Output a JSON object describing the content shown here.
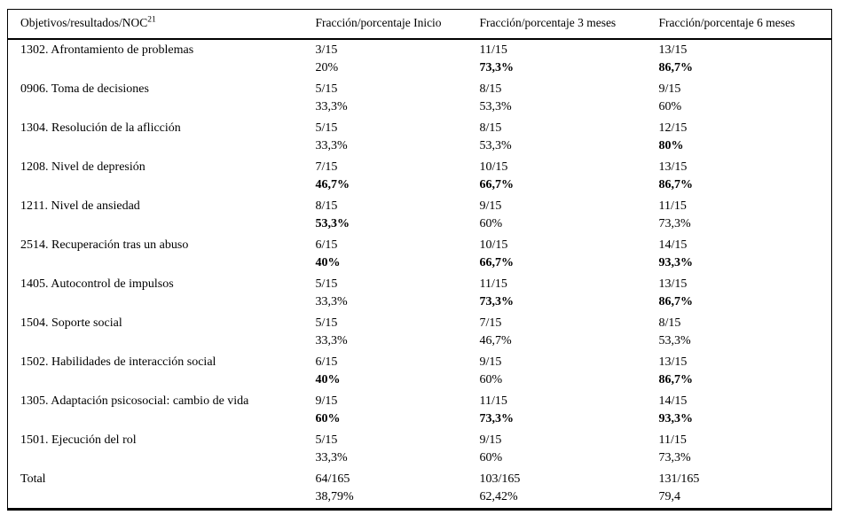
{
  "colors": {
    "background": "#ffffff",
    "text": "#000000",
    "border": "#000000"
  },
  "table": {
    "header": {
      "objectives_label": "Objetivos/resultados/NOC",
      "objectives_superscript": "21",
      "col_inicio": "Fracción/porcentaje Inicio",
      "col_3_meses": "Fracción/porcentaje 3 meses",
      "col_6_meses": "Fracción/porcentaje 6 meses"
    },
    "rows": [
      {
        "label": "1302. Afrontamiento de problemas",
        "inicio": {
          "fraction": "3/15",
          "percent": "20%",
          "bold": false
        },
        "m3": {
          "fraction": "11/15",
          "percent": "73,3%",
          "bold": true
        },
        "m6": {
          "fraction": "13/15",
          "percent": "86,7%",
          "bold": true
        }
      },
      {
        "label": "0906. Toma de decisiones",
        "inicio": {
          "fraction": "5/15",
          "percent": "33,3%",
          "bold": false
        },
        "m3": {
          "fraction": "8/15",
          "percent": "53,3%",
          "bold": false
        },
        "m6": {
          "fraction": "9/15",
          "percent": "60%",
          "bold": false
        }
      },
      {
        "label": "1304. Resolución de la aflicción",
        "inicio": {
          "fraction": "5/15",
          "percent": "33,3%",
          "bold": false
        },
        "m3": {
          "fraction": "8/15",
          "percent": "53,3%",
          "bold": false
        },
        "m6": {
          "fraction": "12/15",
          "percent": "80%",
          "bold": true
        }
      },
      {
        "label": "1208. Nivel de depresión",
        "inicio": {
          "fraction": "7/15",
          "percent": "46,7%",
          "bold": true
        },
        "m3": {
          "fraction": "10/15",
          "percent": "66,7%",
          "bold": true
        },
        "m6": {
          "fraction": "13/15",
          "percent": "86,7%",
          "bold": true
        }
      },
      {
        "label": "1211. Nivel de ansiedad",
        "inicio": {
          "fraction": "8/15",
          "percent": "53,3%",
          "bold": true
        },
        "m3": {
          "fraction": "9/15",
          "percent": "60%",
          "bold": false
        },
        "m6": {
          "fraction": "11/15",
          "percent": "73,3%",
          "bold": false
        }
      },
      {
        "label": "2514. Recuperación tras un abuso",
        "inicio": {
          "fraction": "6/15",
          "percent": "40%",
          "bold": true
        },
        "m3": {
          "fraction": "10/15",
          "percent": "66,7%",
          "bold": true
        },
        "m6": {
          "fraction": "14/15",
          "percent": "93,3%",
          "bold": true
        }
      },
      {
        "label": "1405. Autocontrol de impulsos",
        "inicio": {
          "fraction": "5/15",
          "percent": "33,3%",
          "bold": false
        },
        "m3": {
          "fraction": "11/15",
          "percent": "73,3%",
          "bold": true
        },
        "m6": {
          "fraction": "13/15",
          "percent": "86,7%",
          "bold": true
        }
      },
      {
        "label": "1504. Soporte social",
        "inicio": {
          "fraction": "5/15",
          "percent": "33,3%",
          "bold": false
        },
        "m3": {
          "fraction": "7/15",
          "percent": "46,7%",
          "bold": false
        },
        "m6": {
          "fraction": "8/15",
          "percent": "53,3%",
          "bold": false
        }
      },
      {
        "label": "1502. Habilidades de interacción social",
        "inicio": {
          "fraction": "6/15",
          "percent": "40%",
          "bold": true
        },
        "m3": {
          "fraction": "9/15",
          "percent": "60%",
          "bold": false
        },
        "m6": {
          "fraction": "13/15",
          "percent": "86,7%",
          "bold": true
        }
      },
      {
        "label": "1305. Adaptación psicosocial: cambio de vida",
        "inicio": {
          "fraction": "9/15",
          "percent": "60%",
          "bold": true
        },
        "m3": {
          "fraction": "11/15",
          "percent": "73,3%",
          "bold": true
        },
        "m6": {
          "fraction": "14/15",
          "percent": "93,3%",
          "bold": true
        }
      },
      {
        "label": "1501. Ejecución del rol",
        "inicio": {
          "fraction": "5/15",
          "percent": "33,3%",
          "bold": false
        },
        "m3": {
          "fraction": "9/15",
          "percent": "60%",
          "bold": false
        },
        "m6": {
          "fraction": "11/15",
          "percent": "73,3%",
          "bold": false
        }
      },
      {
        "label": "Total",
        "inicio": {
          "fraction": "64/165",
          "percent": "38,79%",
          "bold": false
        },
        "m3": {
          "fraction": "103/165",
          "percent": "62,42%",
          "bold": false
        },
        "m6": {
          "fraction": "131/165",
          "percent": "79,4",
          "bold": false
        }
      }
    ]
  }
}
